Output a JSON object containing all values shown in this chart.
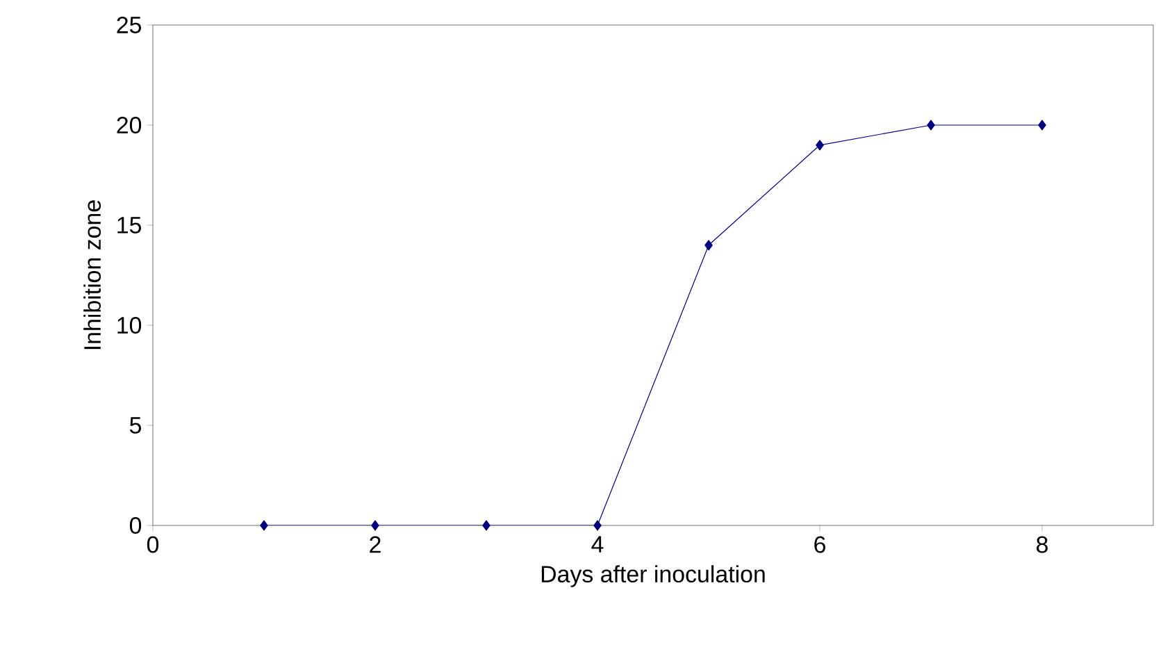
{
  "chart_data": {
    "type": "line",
    "xlabel": "Days after inoculation",
    "ylabel": "Inhibition zone",
    "x": [
      1,
      2,
      3,
      4,
      5,
      6,
      7,
      8
    ],
    "series": [
      {
        "color": "#000080",
        "values": [
          0,
          0,
          0,
          0,
          14,
          19,
          20,
          20
        ]
      }
    ],
    "xlim": [
      0,
      9
    ],
    "ylim": [
      0,
      25
    ],
    "xticks": [
      0,
      2,
      4,
      6,
      8
    ],
    "yticks": [
      0,
      5,
      10,
      15,
      20,
      25
    ],
    "grid": false,
    "marker": "diamond",
    "line_style": "solid"
  }
}
